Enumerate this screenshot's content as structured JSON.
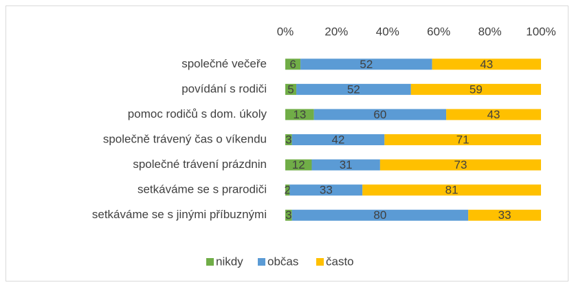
{
  "chart_data": {
    "type": "bar",
    "orientation": "horizontal",
    "stacking": "percent",
    "categories": [
      "společné večeře",
      "povídání s rodiči",
      "pomoc rodičů s dom. úkoly",
      "společně trávený čas o víkendu",
      "společné trávení  prázdnin",
      "setkáváme se s prarodiči",
      "setkáváme se s jinými příbuznými"
    ],
    "series": [
      {
        "name": "nikdy",
        "color": "#70ad47",
        "values": [
          6,
          5,
          13,
          3,
          12,
          2,
          3
        ]
      },
      {
        "name": "občas",
        "color": "#5b9bd5",
        "values": [
          52,
          52,
          60,
          42,
          31,
          33,
          80
        ]
      },
      {
        "name": "často",
        "color": "#ffc000",
        "values": [
          43,
          59,
          43,
          71,
          73,
          81,
          33
        ]
      }
    ],
    "xlim": [
      0,
      100
    ],
    "xticks": [
      {
        "value": 0,
        "label": "0%"
      },
      {
        "value": 20,
        "label": "20%"
      },
      {
        "value": 40,
        "label": "40%"
      },
      {
        "value": 60,
        "label": "60%"
      },
      {
        "value": 80,
        "label": "80%"
      },
      {
        "value": 100,
        "label": "100%"
      }
    ],
    "grid": false,
    "legend": "bottom"
  }
}
